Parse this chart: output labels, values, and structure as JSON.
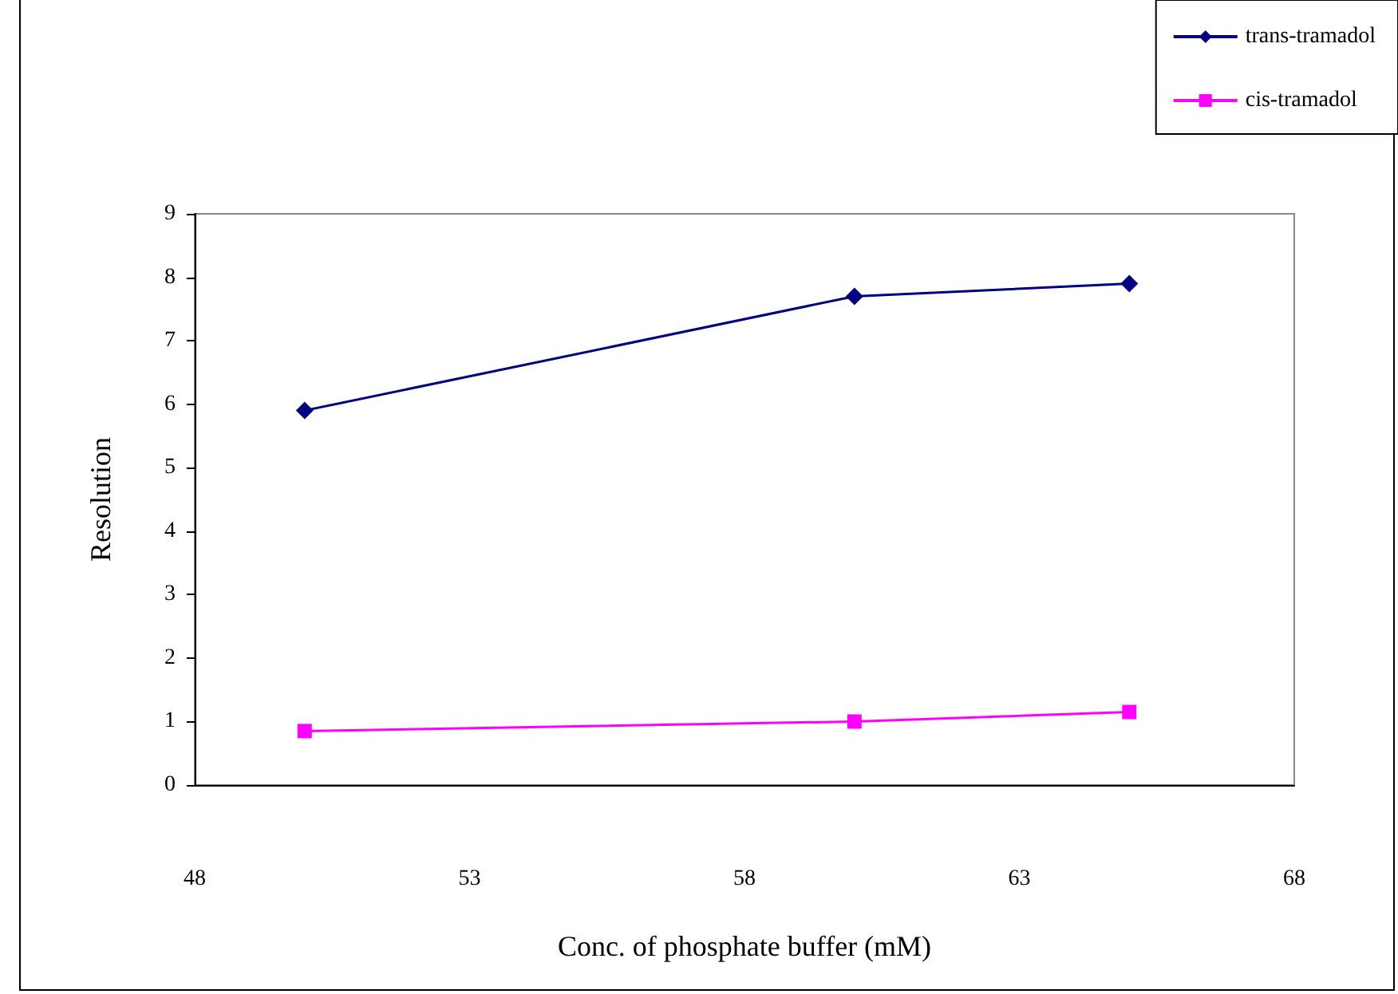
{
  "chart_data": {
    "type": "line",
    "xlabel": "Conc. of phosphate buffer (mM)",
    "ylabel": "Resolution",
    "x": [
      50,
      60,
      65
    ],
    "series": [
      {
        "name": "trans-tramadol",
        "color": "#000080",
        "marker": "diamond",
        "values": [
          5.9,
          7.7,
          7.9
        ]
      },
      {
        "name": "cis-tramadol",
        "color": "#ff00ff",
        "marker": "square",
        "values": [
          0.85,
          1.0,
          1.15
        ]
      }
    ],
    "xlim": [
      48,
      68
    ],
    "xticks": [
      48,
      53,
      58,
      63,
      68
    ],
    "ylim": [
      0,
      9
    ],
    "yticks": [
      0,
      1,
      2,
      3,
      4,
      5,
      6,
      7,
      8,
      9
    ],
    "grid": false,
    "legend": "top right",
    "line_style": "solid"
  }
}
